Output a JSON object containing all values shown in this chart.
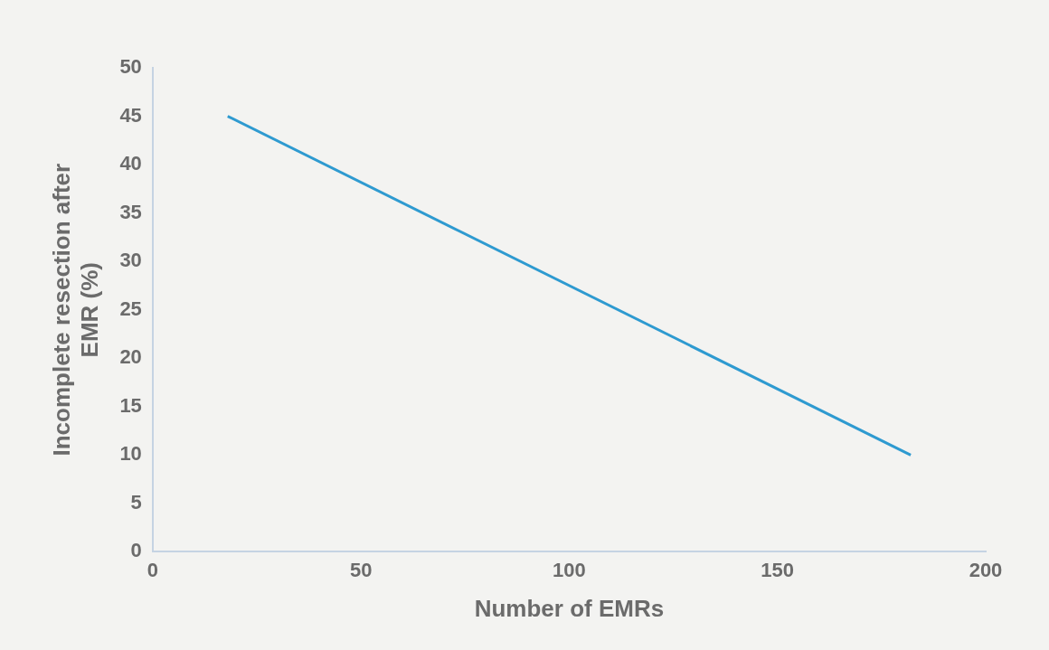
{
  "chart_data": {
    "type": "line",
    "xlabel": "Number of EMRs",
    "ylabel": "Incomplete resection after EMR (%)",
    "x": [
      18,
      182
    ],
    "series": [
      {
        "color": "#2e9ad0",
        "values": [
          45,
          10
        ]
      }
    ],
    "xlim": [
      0,
      200
    ],
    "xticks": [
      0,
      50,
      100,
      150,
      200
    ],
    "ylim": [
      0,
      50
    ],
    "yticks": [
      0,
      5,
      10,
      15,
      20,
      25,
      30,
      35,
      40,
      45,
      50
    ],
    "grid": false,
    "legend": false,
    "marker": "none",
    "line_style": "solid"
  }
}
